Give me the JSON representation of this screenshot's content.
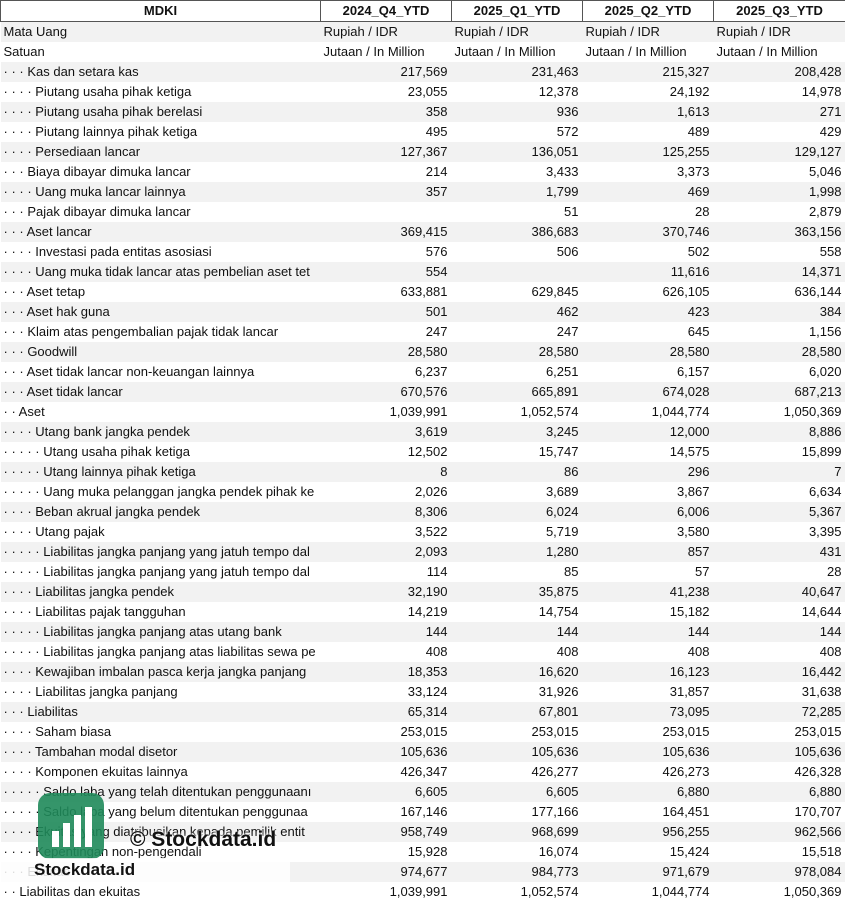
{
  "header": [
    "MDKI",
    "2024_Q4_YTD",
    "2025_Q1_YTD",
    "2025_Q2_YTD",
    "2025_Q3_YTD"
  ],
  "meta_rows": [
    [
      "Mata Uang",
      "Rupiah / IDR",
      "Rupiah / IDR",
      "Rupiah / IDR",
      "Rupiah / IDR"
    ],
    [
      "Satuan",
      "Jutaan / In Million",
      "Jutaan / In Million",
      "Jutaan / In Million",
      "Jutaan / In Million"
    ]
  ],
  "rows": [
    [
      "· · · Kas dan setara kas",
      "217,569",
      "231,463",
      "215,327",
      "208,428"
    ],
    [
      "· · · · Piutang usaha pihak ketiga",
      "23,055",
      "12,378",
      "24,192",
      "14,978"
    ],
    [
      "· · · · Piutang usaha pihak berelasi",
      "358",
      "936",
      "1,613",
      "271"
    ],
    [
      "· · · · Piutang lainnya pihak ketiga",
      "495",
      "572",
      "489",
      "429"
    ],
    [
      "· · · · Persediaan lancar",
      "127,367",
      "136,051",
      "125,255",
      "129,127"
    ],
    [
      "· · · Biaya dibayar dimuka lancar",
      "214",
      "3,433",
      "3,373",
      "5,046"
    ],
    [
      "· · · · Uang muka lancar lainnya",
      "357",
      "1,799",
      "469",
      "1,998"
    ],
    [
      "· · · Pajak dibayar dimuka lancar",
      null,
      "51",
      "28",
      "2,879"
    ],
    [
      "· · · Aset lancar",
      "369,415",
      "386,683",
      "370,746",
      "363,156"
    ],
    [
      "· · · · Investasi pada entitas asosiasi",
      "576",
      "506",
      "502",
      "558"
    ],
    [
      "· · · · Uang muka tidak lancar atas pembelian aset tet",
      "554",
      null,
      "11,616",
      "14,371"
    ],
    [
      "· · · Aset tetap",
      "633,881",
      "629,845",
      "626,105",
      "636,144"
    ],
    [
      "· · · Aset hak guna",
      "501",
      "462",
      "423",
      "384"
    ],
    [
      "· · · Klaim atas pengembalian pajak tidak lancar",
      "247",
      "247",
      "645",
      "1,156"
    ],
    [
      "· · · Goodwill",
      "28,580",
      "28,580",
      "28,580",
      "28,580"
    ],
    [
      "· · · Aset tidak lancar non-keuangan lainnya",
      "6,237",
      "6,251",
      "6,157",
      "6,020"
    ],
    [
      "· · · Aset tidak lancar",
      "670,576",
      "665,891",
      "674,028",
      "687,213"
    ],
    [
      "· · Aset",
      "1,039,991",
      "1,052,574",
      "1,044,774",
      "1,050,369"
    ],
    [
      "· · · · Utang bank jangka pendek",
      "3,619",
      "3,245",
      "12,000",
      "8,886"
    ],
    [
      "· · · · · Utang usaha pihak ketiga",
      "12,502",
      "15,747",
      "14,575",
      "15,899"
    ],
    [
      "· · · · · Utang lainnya pihak ketiga",
      "8",
      "86",
      "296",
      "7"
    ],
    [
      "· · · · · Uang muka pelanggan jangka pendek pihak ke",
      "2,026",
      "3,689",
      "3,867",
      "6,634"
    ],
    [
      "· · · · Beban akrual jangka pendek",
      "8,306",
      "6,024",
      "6,006",
      "5,367"
    ],
    [
      "· · · · Utang pajak",
      "3,522",
      "5,719",
      "3,580",
      "3,395"
    ],
    [
      "· · · · · Liabilitas jangka panjang yang jatuh tempo dal",
      "2,093",
      "1,280",
      "857",
      "431"
    ],
    [
      "· · · · · Liabilitas jangka panjang yang jatuh tempo dal",
      "114",
      "85",
      "57",
      "28"
    ],
    [
      "· · · · Liabilitas jangka pendek",
      "32,190",
      "35,875",
      "41,238",
      "40,647"
    ],
    [
      "· · · · Liabilitas pajak tangguhan",
      "14,219",
      "14,754",
      "15,182",
      "14,644"
    ],
    [
      "· · · · · Liabilitas jangka panjang atas utang bank",
      "144",
      "144",
      "144",
      "144"
    ],
    [
      "· · · · · Liabilitas jangka panjang atas liabilitas sewa pe",
      "408",
      "408",
      "408",
      "408"
    ],
    [
      "· · · · Kewajiban imbalan pasca kerja jangka panjang",
      "18,353",
      "16,620",
      "16,123",
      "16,442"
    ],
    [
      "· · · · Liabilitas jangka panjang",
      "33,124",
      "31,926",
      "31,857",
      "31,638"
    ],
    [
      "· · · Liabilitas",
      "65,314",
      "67,801",
      "73,095",
      "72,285"
    ],
    [
      "· · · · Saham biasa",
      "253,015",
      "253,015",
      "253,015",
      "253,015"
    ],
    [
      "· · · · Tambahan modal disetor",
      "105,636",
      "105,636",
      "105,636",
      "105,636"
    ],
    [
      "· · · · Komponen ekuitas lainnya",
      "426,347",
      "426,277",
      "426,273",
      "426,328"
    ],
    [
      "· · · · · Saldo laba yang telah ditentukan penggunaanı",
      "6,605",
      "6,605",
      "6,880",
      "6,880"
    ],
    [
      "· · · · · Saldo laba yang belum ditentukan penggunaa",
      "167,146",
      "177,166",
      "164,451",
      "170,707"
    ],
    [
      "· · · · Ekuitas yang diatribusikan kepada pemilik entit",
      "958,749",
      "968,699",
      "956,255",
      "962,566"
    ],
    [
      "· · · · Kepentingan non-pengendali",
      "15,928",
      "16,074",
      "15,424",
      "15,518"
    ],
    [
      "· · · Ekuitas",
      "974,677",
      "984,773",
      "971,679",
      "978,084"
    ],
    [
      "· · Liabilitas dan ekuitas",
      "1,039,991",
      "1,052,574",
      "1,044,774",
      "1,050,369"
    ]
  ],
  "watermark": {
    "text": "© Stockdata.id",
    "brand": "Stockdata.id"
  }
}
